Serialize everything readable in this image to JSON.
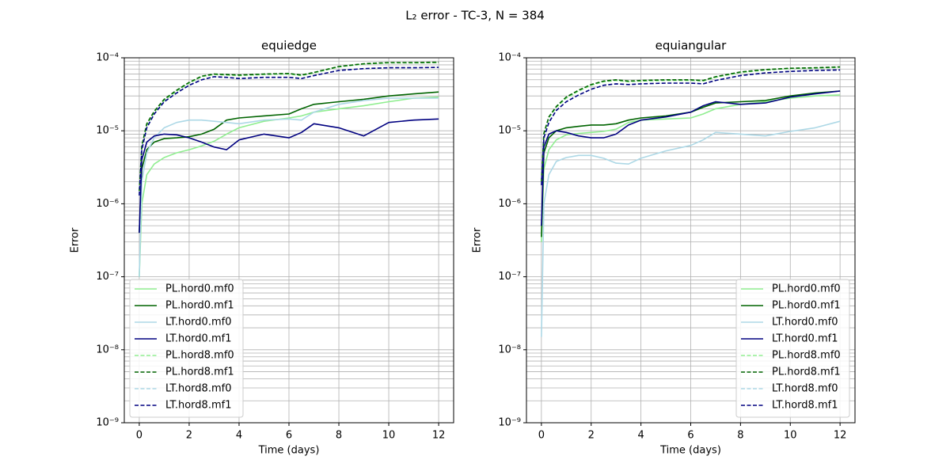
{
  "title": "L₂ error - TC-3, N = 384",
  "chart_data": [
    {
      "type": "line",
      "title": "equiedge",
      "xlabel": "Time (days)",
      "ylabel": "Error",
      "yscale": "log",
      "grid": true,
      "minor_grid": true,
      "legend": "lower left",
      "xlim": [
        -0.6,
        12.6
      ],
      "xticks": [
        0,
        2,
        4,
        6,
        8,
        10,
        12
      ],
      "ylim": [
        1e-09,
        0.0001
      ],
      "yticks": [
        {
          "value": 1e-09,
          "label": "10⁻⁹"
        },
        {
          "value": 1e-08,
          "label": "10⁻⁸"
        },
        {
          "value": 1e-07,
          "label": "10⁻⁷"
        },
        {
          "value": 1e-06,
          "label": "10⁻⁶"
        },
        {
          "value": 1e-05,
          "label": "10⁻⁵"
        },
        {
          "value": 0.0001,
          "label": "10⁻⁴"
        }
      ],
      "x": [
        0,
        0.1,
        0.3,
        0.6,
        1,
        1.5,
        2,
        2.5,
        3,
        3.5,
        4,
        5,
        6,
        6.5,
        7,
        8,
        9,
        10,
        11,
        12
      ],
      "series": [
        {
          "name": "PL.hord0.mf0",
          "color": "#90ee90",
          "linestyle": "solid",
          "values": [
            1e-07,
            1e-06,
            2.5e-06,
            3.5e-06,
            4.3e-06,
            5e-06,
            5.5e-06,
            6.2e-06,
            7.2e-06,
            9e-06,
            1.1e-05,
            1.35e-05,
            1.5e-05,
            1.6e-05,
            1.8e-05,
            2e-05,
            2.2e-05,
            2.5e-05,
            2.8e-05,
            2.9e-05
          ]
        },
        {
          "name": "PL.hord0.mf1",
          "color": "#006400",
          "linestyle": "solid",
          "values": [
            4e-07,
            3e-06,
            5.5e-06,
            7e-06,
            7.8e-06,
            8e-06,
            8.3e-06,
            9e-06,
            1.05e-05,
            1.4e-05,
            1.5e-05,
            1.6e-05,
            1.7e-05,
            2e-05,
            2.3e-05,
            2.5e-05,
            2.7e-05,
            3e-05,
            3.2e-05,
            3.4e-05
          ]
        },
        {
          "name": "LT.hord0.mf0",
          "color": "#add8e6",
          "linestyle": "solid",
          "values": [
            1e-07,
            2e-06,
            5e-06,
            8e-06,
            1.1e-05,
            1.3e-05,
            1.4e-05,
            1.4e-05,
            1.35e-05,
            1.3e-05,
            1.25e-05,
            1.4e-05,
            1.45e-05,
            1.4e-05,
            1.8e-05,
            2.3e-05,
            2.6e-05,
            2.8e-05,
            2.8e-05,
            2.8e-05
          ]
        },
        {
          "name": "LT.hord0.mf1",
          "color": "#000080",
          "linestyle": "solid",
          "values": [
            4e-07,
            4e-06,
            7e-06,
            8.5e-06,
            9e-06,
            8.8e-06,
            8e-06,
            7e-06,
            6e-06,
            5.5e-06,
            7.5e-06,
            9e-06,
            8e-06,
            9.5e-06,
            1.25e-05,
            1.1e-05,
            8.5e-06,
            1.3e-05,
            1.4e-05,
            1.45e-05
          ]
        },
        {
          "name": "PL.hord8.mf0",
          "color": "#90ee90",
          "linestyle": "dashed",
          "values": [
            1.5e-06,
            6e-06,
            1.2e-05,
            1.8e-05,
            2.6e-05,
            3.5e-05,
            4.5e-05,
            5.5e-05,
            5.9e-05,
            5.8e-05,
            5.7e-05,
            5.9e-05,
            6e-05,
            5.7e-05,
            6.2e-05,
            7.5e-05,
            8.2e-05,
            8.5e-05,
            8.5e-05,
            8.6e-05
          ]
        },
        {
          "name": "PL.hord8.mf1",
          "color": "#006400",
          "linestyle": "dashed",
          "values": [
            1.5e-06,
            6.2e-06,
            1.25e-05,
            1.85e-05,
            2.7e-05,
            3.6e-05,
            4.6e-05,
            5.6e-05,
            6e-05,
            5.9e-05,
            5.8e-05,
            6e-05,
            6.1e-05,
            5.8e-05,
            6.3e-05,
            7.6e-05,
            8.3e-05,
            8.6e-05,
            8.6e-05,
            8.7e-05
          ]
        },
        {
          "name": "LT.hord8.mf0",
          "color": "#add8e6",
          "linestyle": "dashed",
          "values": [
            1.3e-06,
            5.5e-06,
            1.1e-05,
            1.7e-05,
            2.5e-05,
            3.3e-05,
            4.2e-05,
            5e-05,
            5.5e-05,
            5.4e-05,
            5.2e-05,
            5.4e-05,
            5.4e-05,
            5.2e-05,
            5.7e-05,
            6.7e-05,
            7.1e-05,
            7.3e-05,
            7.3e-05,
            7.4e-05
          ]
        },
        {
          "name": "LT.hord8.mf1",
          "color": "#000080",
          "linestyle": "dashed",
          "values": [
            1.3e-06,
            5.5e-06,
            1.1e-05,
            1.7e-05,
            2.5e-05,
            3.3e-05,
            4.2e-05,
            5e-05,
            5.5e-05,
            5.4e-05,
            5.2e-05,
            5.4e-05,
            5.4e-05,
            5.2e-05,
            5.7e-05,
            6.7e-05,
            7.1e-05,
            7.3e-05,
            7.3e-05,
            7.4e-05
          ]
        }
      ]
    },
    {
      "type": "line",
      "title": "equiangular",
      "xlabel": "Time (days)",
      "ylabel": "Error",
      "yscale": "log",
      "grid": true,
      "minor_grid": true,
      "legend": "lower right",
      "xlim": [
        -0.6,
        12.6
      ],
      "xticks": [
        0,
        2,
        4,
        6,
        8,
        10,
        12
      ],
      "ylim": [
        1e-09,
        0.0001
      ],
      "yticks": [
        {
          "value": 1e-09,
          "label": "10⁻⁹"
        },
        {
          "value": 1e-08,
          "label": "10⁻⁸"
        },
        {
          "value": 1e-07,
          "label": "10⁻⁷"
        },
        {
          "value": 1e-06,
          "label": "10⁻⁶"
        },
        {
          "value": 1e-05,
          "label": "10⁻⁵"
        },
        {
          "value": 0.0001,
          "label": "10⁻⁴"
        }
      ],
      "x": [
        0,
        0.1,
        0.3,
        0.6,
        1,
        1.5,
        2,
        2.5,
        3,
        3.5,
        4,
        5,
        6,
        6.5,
        7,
        8,
        9,
        10,
        11,
        12
      ],
      "series": [
        {
          "name": "PL.hord0.mf0",
          "color": "#90ee90",
          "linestyle": "solid",
          "values": [
            3e-07,
            3e-06,
            5.5e-06,
            7.5e-06,
            8.8e-06,
            9.2e-06,
            9.5e-06,
            9.8e-06,
            1.05e-05,
            1.3e-05,
            1.4e-05,
            1.45e-05,
            1.5e-05,
            1.7e-05,
            2e-05,
            2.3e-05,
            2.5e-05,
            2.8e-05,
            3e-05,
            3.1e-05
          ]
        },
        {
          "name": "PL.hord0.mf1",
          "color": "#006400",
          "linestyle": "solid",
          "values": [
            3.5e-07,
            5e-06,
            8e-06,
            1e-05,
            1.1e-05,
            1.15e-05,
            1.2e-05,
            1.2e-05,
            1.25e-05,
            1.4e-05,
            1.5e-05,
            1.6e-05,
            1.8e-05,
            2.1e-05,
            2.4e-05,
            2.5e-05,
            2.6e-05,
            3e-05,
            3.3e-05,
            3.5e-05
          ]
        },
        {
          "name": "LT.hord0.mf0",
          "color": "#add8e6",
          "linestyle": "solid",
          "values": [
            1.5e-08,
            1e-06,
            2.5e-06,
            3.8e-06,
            4.3e-06,
            4.6e-06,
            4.6e-06,
            4.2e-06,
            3.6e-06,
            3.5e-06,
            4.2e-06,
            5.3e-06,
            6.3e-06,
            7.5e-06,
            9.5e-06,
            9e-06,
            8.5e-06,
            9.8e-06,
            1.1e-05,
            1.35e-05
          ]
        },
        {
          "name": "LT.hord0.mf1",
          "color": "#000080",
          "linestyle": "solid",
          "values": [
            5e-07,
            6e-06,
            9e-06,
            1e-05,
            9.5e-06,
            8.5e-06,
            8e-06,
            8e-06,
            9e-06,
            1.2e-05,
            1.4e-05,
            1.55e-05,
            1.8e-05,
            2.2e-05,
            2.5e-05,
            2.3e-05,
            2.4e-05,
            2.9e-05,
            3.2e-05,
            3.5e-05
          ]
        },
        {
          "name": "PL.hord8.mf0",
          "color": "#90ee90",
          "linestyle": "dashed",
          "values": [
            2e-06,
            9e-06,
            1.5e-05,
            2.1e-05,
            2.8e-05,
            3.5e-05,
            4.2e-05,
            4.7e-05,
            4.9e-05,
            4.7e-05,
            4.8e-05,
            4.9e-05,
            4.9e-05,
            4.8e-05,
            5.4e-05,
            6.3e-05,
            6.8e-05,
            7.1e-05,
            7.2e-05,
            7.4e-05
          ]
        },
        {
          "name": "PL.hord8.mf1",
          "color": "#006400",
          "linestyle": "dashed",
          "values": [
            2e-06,
            9.2e-06,
            1.55e-05,
            2.15e-05,
            2.9e-05,
            3.6e-05,
            4.3e-05,
            4.8e-05,
            5e-05,
            4.8e-05,
            4.9e-05,
            5e-05,
            5e-05,
            4.9e-05,
            5.5e-05,
            6.4e-05,
            6.9e-05,
            7.2e-05,
            7.3e-05,
            7.5e-05
          ]
        },
        {
          "name": "LT.hord8.mf0",
          "color": "#add8e6",
          "linestyle": "dashed",
          "values": [
            1.8e-06,
            8e-06,
            1.3e-05,
            1.9e-05,
            2.5e-05,
            3.1e-05,
            3.7e-05,
            4.2e-05,
            4.4e-05,
            4.3e-05,
            4.4e-05,
            4.5e-05,
            4.5e-05,
            4.4e-05,
            4.9e-05,
            5.7e-05,
            6.2e-05,
            6.5e-05,
            6.7e-05,
            6.8e-05
          ]
        },
        {
          "name": "LT.hord8.mf1",
          "color": "#000080",
          "linestyle": "dashed",
          "values": [
            1.8e-06,
            8e-06,
            1.3e-05,
            1.9e-05,
            2.5e-05,
            3.1e-05,
            3.7e-05,
            4.2e-05,
            4.4e-05,
            4.3e-05,
            4.4e-05,
            4.5e-05,
            4.5e-05,
            4.4e-05,
            4.9e-05,
            5.7e-05,
            6.2e-05,
            6.5e-05,
            6.7e-05,
            6.8e-05
          ]
        }
      ]
    }
  ]
}
